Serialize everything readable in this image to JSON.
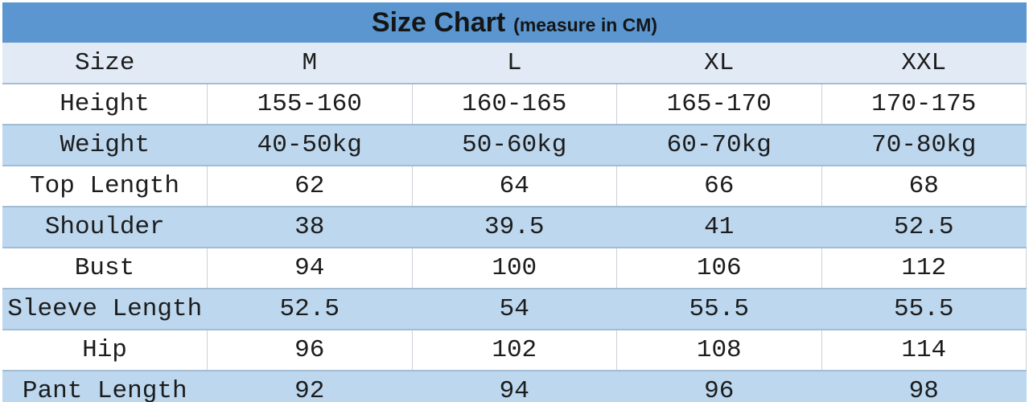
{
  "title": {
    "main": "Size Chart",
    "sub": "(measure in CM)"
  },
  "colors": {
    "header_bg": "#5b96d0",
    "head_row_bg": "#e2ebf5",
    "band_bg": "#bcd7ee",
    "row_bg": "#ffffff",
    "separator": "#a2bcd3",
    "text": "#1c1c1c",
    "title_text": "#151515"
  },
  "chart_data": {
    "type": "table",
    "title": "Size Chart",
    "subtitle": "(measure in CM)",
    "unit": "CM",
    "columns": [
      "Size",
      "M",
      "L",
      "XL",
      "XXL"
    ],
    "rows": [
      {
        "label": "Height",
        "values": [
          "155-160",
          "160-165",
          "165-170",
          "170-175"
        ]
      },
      {
        "label": "Weight",
        "values": [
          "40-50kg",
          "50-60kg",
          "60-70kg",
          "70-80kg"
        ]
      },
      {
        "label": "Top Length",
        "values": [
          "62",
          "64",
          "66",
          "68"
        ]
      },
      {
        "label": "Shoulder",
        "values": [
          "38",
          "39.5",
          "41",
          "52.5"
        ]
      },
      {
        "label": "Bust",
        "values": [
          "94",
          "100",
          "106",
          "112"
        ]
      },
      {
        "label": "Sleeve Length",
        "values": [
          "52.5",
          "54",
          "55.5",
          "55.5"
        ]
      },
      {
        "label": "Hip",
        "values": [
          "96",
          "102",
          "108",
          "114"
        ]
      },
      {
        "label": "Pant Length",
        "values": [
          "92",
          "94",
          "96",
          "98"
        ]
      }
    ]
  }
}
